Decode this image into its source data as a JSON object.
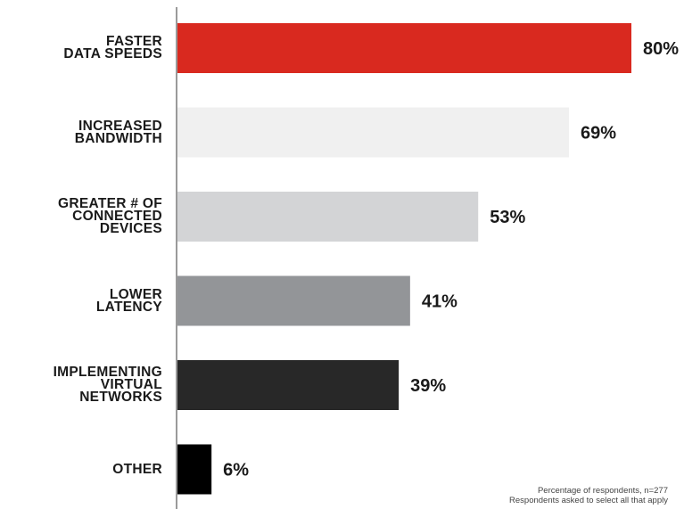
{
  "chart_data": {
    "type": "bar",
    "orientation": "horizontal",
    "categories": [
      "FASTER\nDATA SPEEDS",
      "INCREASED\nBANDWIDTH",
      "GREATER # OF\nCONNECTED\nDEVICES",
      "LOWER\nLATENCY",
      "IMPLEMENTING\nVIRTUAL\nNETWORKS",
      "OTHER"
    ],
    "values": [
      80,
      69,
      53,
      41,
      39,
      6
    ],
    "value_labels": [
      "80%",
      "69%",
      "53%",
      "41%",
      "39%",
      "6%"
    ],
    "colors": [
      "#d9291f",
      "#f0f0f0",
      "#d3d4d6",
      "#939598",
      "#282828",
      "#000000"
    ],
    "xlim": [
      0,
      80
    ],
    "grid": false,
    "legend": "none"
  },
  "footnote": {
    "line1": "Percentage of respondents, n=277",
    "line2": "Respondents asked to select all that apply"
  }
}
